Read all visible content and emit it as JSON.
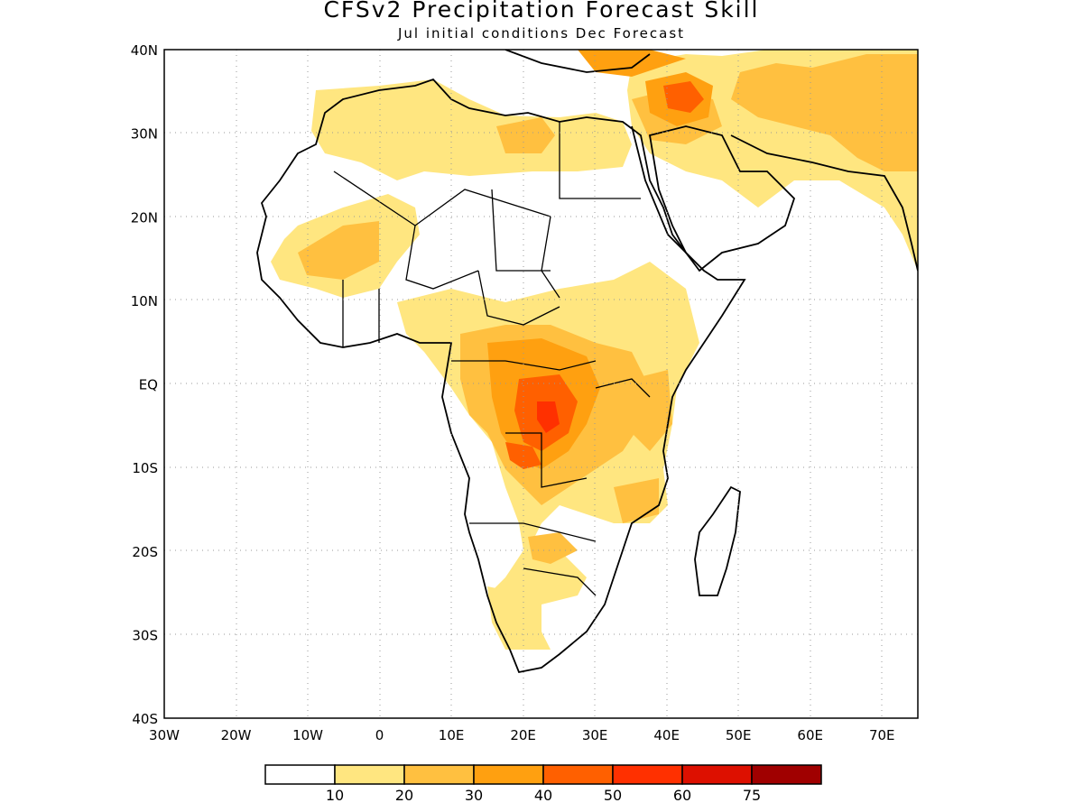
{
  "title": "CFSv2 Precipitation Forecast Skill",
  "subtitle": "Jul initial conditions   Dec Forecast",
  "map": {
    "lon_range": [
      -30,
      75
    ],
    "lat_range": [
      -40,
      40
    ],
    "lat_ticks": [
      {
        "value": 40,
        "label": "40N"
      },
      {
        "value": 30,
        "label": "30N"
      },
      {
        "value": 20,
        "label": "20N"
      },
      {
        "value": 10,
        "label": "10N"
      },
      {
        "value": 0,
        "label": "EQ"
      },
      {
        "value": -10,
        "label": "10S"
      },
      {
        "value": -20,
        "label": "20S"
      },
      {
        "value": -30,
        "label": "30S"
      },
      {
        "value": -40,
        "label": "40S"
      }
    ],
    "lon_ticks": [
      {
        "value": -30,
        "label": "30W"
      },
      {
        "value": -20,
        "label": "20W"
      },
      {
        "value": -10,
        "label": "10W"
      },
      {
        "value": 0,
        "label": "0"
      },
      {
        "value": 10,
        "label": "10E"
      },
      {
        "value": 20,
        "label": "20E"
      },
      {
        "value": 30,
        "label": "30E"
      },
      {
        "value": 40,
        "label": "40E"
      },
      {
        "value": 50,
        "label": "50E"
      },
      {
        "value": 60,
        "label": "60E"
      },
      {
        "value": 70,
        "label": "70E"
      }
    ],
    "gridlines": "dotted"
  },
  "colorbar": {
    "colors": [
      "#ffffff",
      "#ffe680",
      "#ffc040",
      "#ffa010",
      "#ff6000",
      "#ff3000",
      "#dd1000",
      "#a00000"
    ],
    "labels": [
      "10",
      "20",
      "30",
      "40",
      "50",
      "60",
      "75"
    ]
  }
}
